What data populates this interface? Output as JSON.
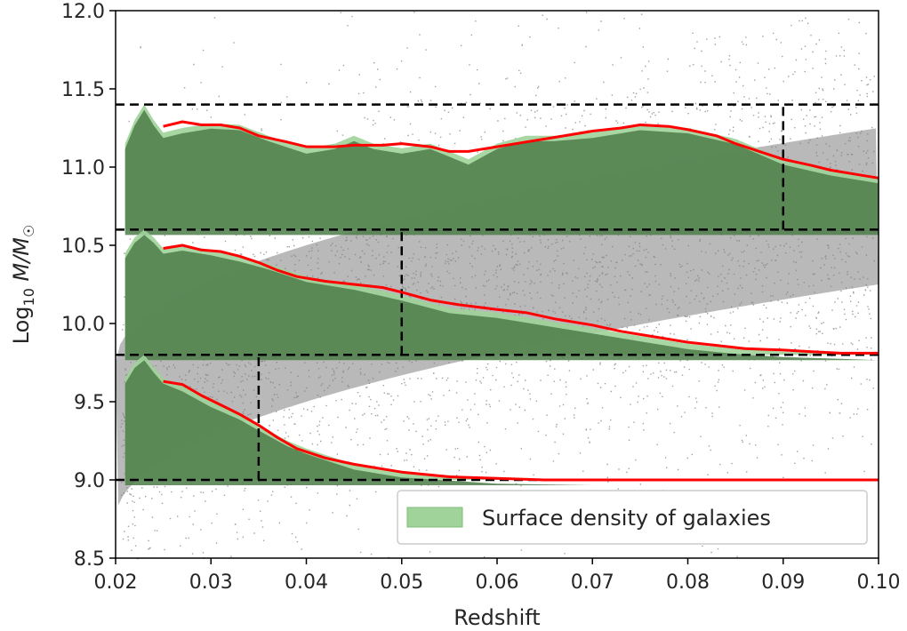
{
  "chart_data": {
    "type": "scatter",
    "xlabel": "Redshift",
    "ylabel": "Log10 M/M☉",
    "ylabel_parts": {
      "base": "Log",
      "sub": "10",
      "sym": " M/M",
      "sun": "☉"
    },
    "xlim": [
      0.02,
      0.1
    ],
    "ylim": [
      8.5,
      12.0
    ],
    "xticks": [
      "0.02",
      "0.03",
      "0.04",
      "0.05",
      "0.06",
      "0.07",
      "0.08",
      "0.09",
      "0.10"
    ],
    "yticks": [
      "8.5",
      "9.0",
      "9.5",
      "10.0",
      "10.5",
      "11.0",
      "11.5",
      "12.0"
    ],
    "grid": false,
    "legend": {
      "placement": "lower-right",
      "entries": [
        "Surface density of galaxies"
      ]
    },
    "colors": {
      "scatter": "#808080",
      "density_light": "#9fd39a",
      "density_dark": "#4d7d4a",
      "curve": "#ff0000",
      "guides": "#000000"
    },
    "horizontal_lines": [
      11.4,
      10.6,
      9.8,
      9.0
    ],
    "vertical_lines": [
      {
        "x": 0.09,
        "y_from": 10.6,
        "y_to": 11.4
      },
      {
        "x": 0.05,
        "y_from": 9.8,
        "y_to": 10.6
      },
      {
        "x": 0.035,
        "y_from": 9.0,
        "y_to": 9.8
      }
    ],
    "series": [
      {
        "type": "area",
        "group": "high",
        "baseline": 10.6,
        "x": [
          0.021,
          0.022,
          0.023,
          0.024,
          0.025,
          0.027,
          0.03,
          0.033,
          0.036,
          0.04,
          0.043,
          0.045,
          0.047,
          0.05,
          0.053,
          0.055,
          0.057,
          0.06,
          0.063,
          0.066,
          0.07,
          0.075,
          0.08,
          0.085,
          0.09,
          0.095,
          0.1
        ],
        "y": [
          11.15,
          11.3,
          11.4,
          11.3,
          11.22,
          11.25,
          11.28,
          11.27,
          11.2,
          11.12,
          11.15,
          11.2,
          11.15,
          11.12,
          11.15,
          11.1,
          11.05,
          11.15,
          11.2,
          11.2,
          11.22,
          11.27,
          11.25,
          11.18,
          11.05,
          10.98,
          10.93
        ]
      },
      {
        "type": "area",
        "group": "mid",
        "baseline": 9.8,
        "x": [
          0.021,
          0.022,
          0.023,
          0.024,
          0.025,
          0.027,
          0.03,
          0.033,
          0.036,
          0.04,
          0.045,
          0.05,
          0.055,
          0.06,
          0.065,
          0.07,
          0.075,
          0.08,
          0.085,
          0.09,
          0.095,
          0.1
        ],
        "y": [
          10.45,
          10.55,
          10.6,
          10.55,
          10.48,
          10.5,
          10.47,
          10.43,
          10.38,
          10.3,
          10.25,
          10.18,
          10.1,
          10.07,
          10.02,
          9.97,
          9.92,
          9.87,
          9.84,
          9.82,
          9.81,
          9.8
        ]
      },
      {
        "type": "area",
        "group": "low",
        "baseline": 9.0,
        "x": [
          0.021,
          0.022,
          0.023,
          0.024,
          0.025,
          0.027,
          0.03,
          0.033,
          0.035,
          0.038,
          0.04,
          0.045,
          0.05,
          0.055,
          0.06,
          0.07,
          0.08,
          0.09,
          0.1
        ],
        "y": [
          9.65,
          9.75,
          9.8,
          9.72,
          9.65,
          9.6,
          9.5,
          9.42,
          9.35,
          9.25,
          9.2,
          9.1,
          9.05,
          9.03,
          9.01,
          9.0,
          9.0,
          9.0,
          9.0
        ]
      },
      {
        "type": "line",
        "group": "high",
        "x": [
          0.025,
          0.027,
          0.029,
          0.031,
          0.033,
          0.035,
          0.038,
          0.04,
          0.043,
          0.045,
          0.048,
          0.05,
          0.053,
          0.055,
          0.057,
          0.06,
          0.063,
          0.066,
          0.07,
          0.073,
          0.075,
          0.078,
          0.08,
          0.083,
          0.085,
          0.088,
          0.09,
          0.093,
          0.095,
          0.098,
          0.1
        ],
        "y": [
          11.26,
          11.29,
          11.27,
          11.27,
          11.25,
          11.2,
          11.16,
          11.13,
          11.13,
          11.14,
          11.14,
          11.15,
          11.13,
          11.1,
          11.1,
          11.13,
          11.16,
          11.19,
          11.23,
          11.25,
          11.27,
          11.26,
          11.24,
          11.2,
          11.15,
          11.09,
          11.05,
          11.01,
          10.98,
          10.95,
          10.93
        ]
      },
      {
        "type": "line",
        "group": "mid",
        "x": [
          0.025,
          0.027,
          0.029,
          0.031,
          0.033,
          0.035,
          0.037,
          0.039,
          0.042,
          0.045,
          0.048,
          0.05,
          0.053,
          0.056,
          0.06,
          0.063,
          0.066,
          0.07,
          0.073,
          0.076,
          0.08,
          0.083,
          0.086,
          0.09,
          0.093,
          0.096,
          0.1
        ],
        "y": [
          10.48,
          10.5,
          10.47,
          10.46,
          10.43,
          10.39,
          10.34,
          10.3,
          10.27,
          10.25,
          10.23,
          10.2,
          10.15,
          10.12,
          10.09,
          10.07,
          10.03,
          9.99,
          9.95,
          9.92,
          9.88,
          9.86,
          9.84,
          9.83,
          9.82,
          9.81,
          9.81
        ]
      },
      {
        "type": "line",
        "group": "low",
        "x": [
          0.025,
          0.027,
          0.029,
          0.031,
          0.033,
          0.035,
          0.037,
          0.039,
          0.042,
          0.045,
          0.048,
          0.05,
          0.055,
          0.06,
          0.065,
          0.07,
          0.08,
          0.09,
          0.1
        ],
        "y": [
          9.63,
          9.61,
          9.54,
          9.48,
          9.42,
          9.35,
          9.27,
          9.2,
          9.14,
          9.1,
          9.07,
          9.05,
          9.02,
          9.01,
          9.0,
          9.0,
          9.0,
          9.0,
          9.0
        ]
      }
    ]
  }
}
